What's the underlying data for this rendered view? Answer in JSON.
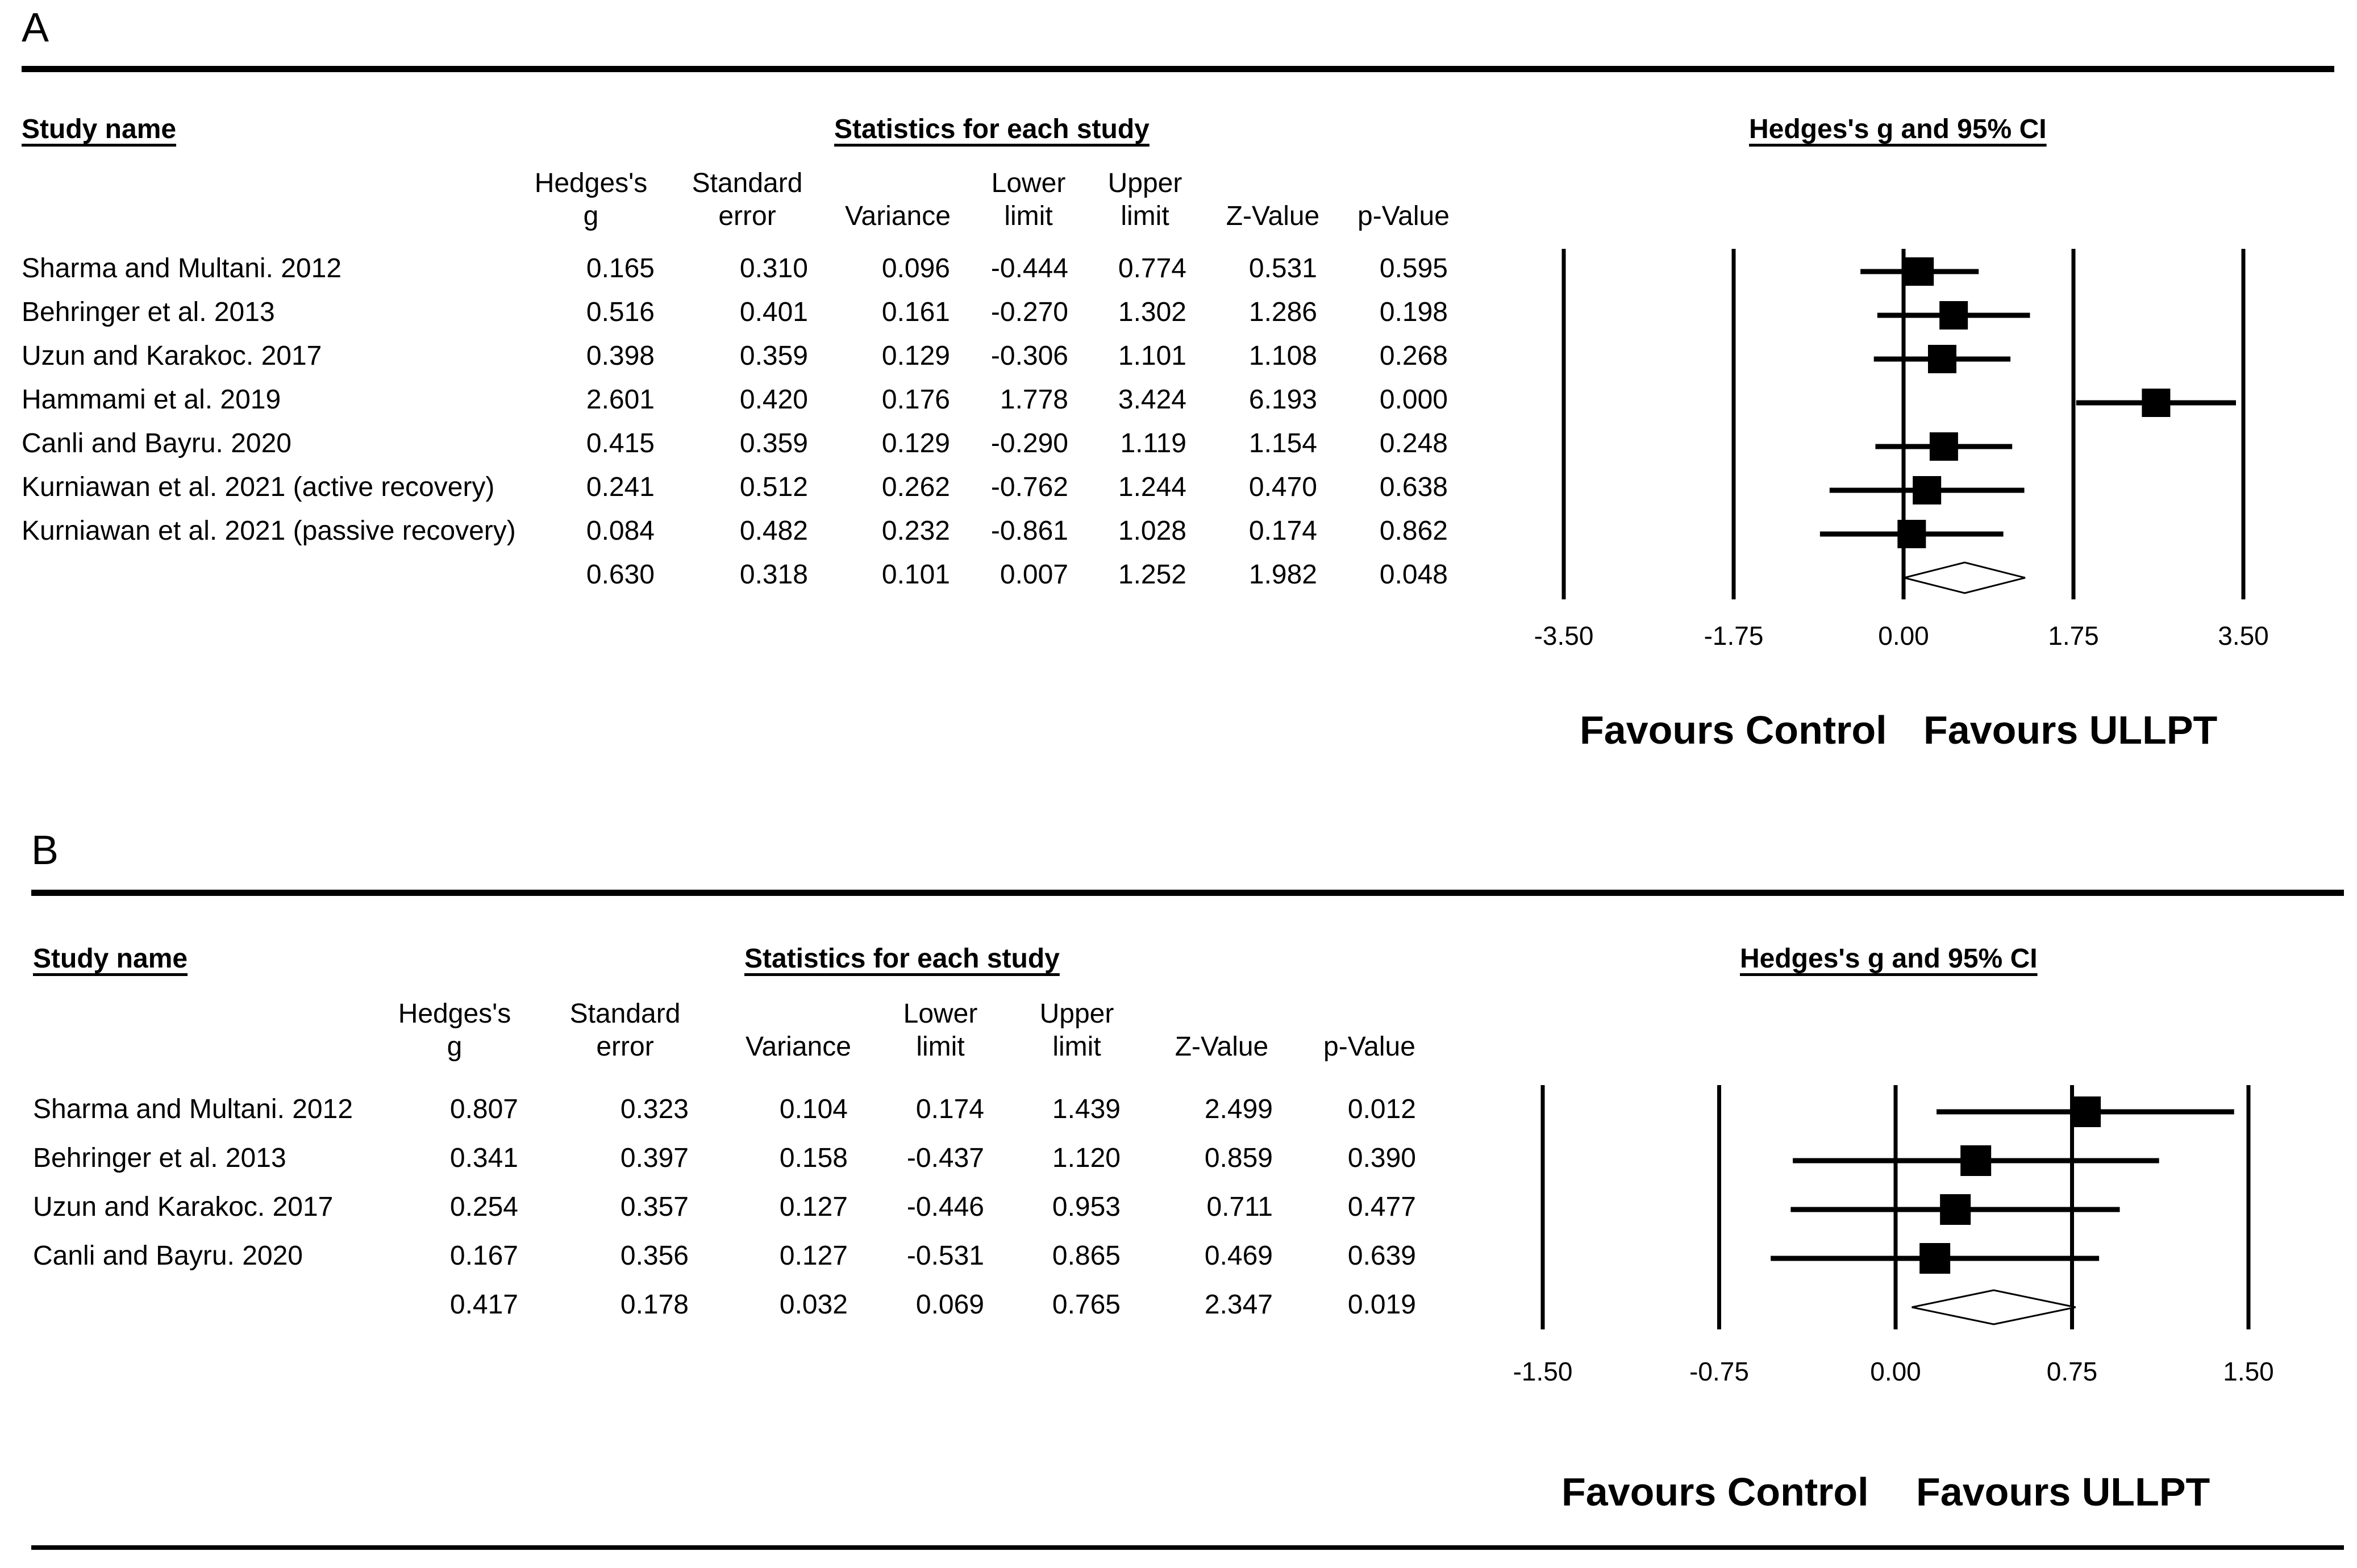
{
  "panels": [
    {
      "label": "A",
      "study_header": "Study name",
      "stats_header": "Statistics for each study",
      "plot_header": "Hedges's g and 95% CI",
      "columns": [
        "Hedges's\ng",
        "Standard\nerror",
        "Variance",
        "Lower\nlimit",
        "Upper\nlimit",
        "Z-Value",
        "p-Value"
      ],
      "rows": [
        {
          "study": "Sharma and Multani. 2012",
          "g": "0.165",
          "se": "0.310",
          "var": "0.096",
          "lower": "-0.444",
          "upper": "0.774",
          "z": "0.531",
          "p": "0.595"
        },
        {
          "study": "Behringer et al. 2013",
          "g": "0.516",
          "se": "0.401",
          "var": "0.161",
          "lower": "-0.270",
          "upper": "1.302",
          "z": "1.286",
          "p": "0.198"
        },
        {
          "study": "Uzun and Karakoc. 2017",
          "g": "0.398",
          "se": "0.359",
          "var": "0.129",
          "lower": "-0.306",
          "upper": "1.101",
          "z": "1.108",
          "p": "0.268"
        },
        {
          "study": "Hammami et al. 2019",
          "g": "2.601",
          "se": "0.420",
          "var": "0.176",
          "lower": "1.778",
          "upper": "3.424",
          "z": "6.193",
          "p": "0.000"
        },
        {
          "study": "Canli and Bayru. 2020",
          "g": "0.415",
          "se": "0.359",
          "var": "0.129",
          "lower": "-0.290",
          "upper": "1.119",
          "z": "1.154",
          "p": "0.248"
        },
        {
          "study": "Kurniawan et al. 2021 (active recovery)",
          "g": "0.241",
          "se": "0.512",
          "var": "0.262",
          "lower": "-0.762",
          "upper": "1.244",
          "z": "0.470",
          "p": "0.638"
        },
        {
          "study": "Kurniawan et al. 2021 (passive recovery)",
          "g": "0.084",
          "se": "0.482",
          "var": "0.232",
          "lower": "-0.861",
          "upper": "1.028",
          "z": "0.174",
          "p": "0.862"
        }
      ],
      "summary": {
        "g": "0.630",
        "se": "0.318",
        "var": "0.101",
        "lower": "0.007",
        "upper": "1.252",
        "z": "1.982",
        "p": "0.048"
      },
      "axis_ticks": [
        "-3.50",
        "-1.75",
        "0.00",
        "1.75",
        "3.50"
      ],
      "favours_left": "Favours Control",
      "favours_right": "Favours ULLPT"
    },
    {
      "label": "B",
      "study_header": "Study name",
      "stats_header": "Statistics for each study",
      "plot_header": "Hedges's g and 95% CI",
      "columns": [
        "Hedges's\ng",
        "Standard\nerror",
        "Variance",
        "Lower\nlimit",
        "Upper\nlimit",
        "Z-Value",
        "p-Value"
      ],
      "rows": [
        {
          "study": "Sharma and Multani. 2012",
          "g": "0.807",
          "se": "0.323",
          "var": "0.104",
          "lower": "0.174",
          "upper": "1.439",
          "z": "2.499",
          "p": "0.012"
        },
        {
          "study": "Behringer et al. 2013",
          "g": "0.341",
          "se": "0.397",
          "var": "0.158",
          "lower": "-0.437",
          "upper": "1.120",
          "z": "0.859",
          "p": "0.390"
        },
        {
          "study": "Uzun and Karakoc. 2017",
          "g": "0.254",
          "se": "0.357",
          "var": "0.127",
          "lower": "-0.446",
          "upper": "0.953",
          "z": "0.711",
          "p": "0.477"
        },
        {
          "study": "Canli and Bayru. 2020",
          "g": "0.167",
          "se": "0.356",
          "var": "0.127",
          "lower": "-0.531",
          "upper": "0.865",
          "z": "0.469",
          "p": "0.639"
        }
      ],
      "summary": {
        "g": "0.417",
        "se": "0.178",
        "var": "0.032",
        "lower": "0.069",
        "upper": "0.765",
        "z": "2.347",
        "p": "0.019"
      },
      "axis_ticks": [
        "-1.50",
        "-0.75",
        "0.00",
        "0.75",
        "1.50"
      ],
      "favours_left": "Favours Control",
      "favours_right": "Favours ULLPT"
    }
  ],
  "chart_data": [
    {
      "type": "forest",
      "panel": "A",
      "title": "Hedges's g and 95% CI",
      "xlim": [
        -3.5,
        3.5
      ],
      "ticks": [
        -3.5,
        -1.75,
        0,
        1.75,
        3.5
      ],
      "points": [
        {
          "study": "Sharma and Multani. 2012",
          "g": 0.165,
          "lower": -0.444,
          "upper": 0.774
        },
        {
          "study": "Behringer et al. 2013",
          "g": 0.516,
          "lower": -0.27,
          "upper": 1.302
        },
        {
          "study": "Uzun and Karakoc. 2017",
          "g": 0.398,
          "lower": -0.306,
          "upper": 1.101
        },
        {
          "study": "Hammami et al. 2019",
          "g": 2.601,
          "lower": 1.778,
          "upper": 3.424
        },
        {
          "study": "Canli and Bayru. 2020",
          "g": 0.415,
          "lower": -0.29,
          "upper": 1.119
        },
        {
          "study": "Kurniawan et al. 2021 (active recovery)",
          "g": 0.241,
          "lower": -0.762,
          "upper": 1.244
        },
        {
          "study": "Kurniawan et al. 2021 (passive recovery)",
          "g": 0.084,
          "lower": -0.861,
          "upper": 1.028
        }
      ],
      "pooled": {
        "g": 0.63,
        "lower": 0.007,
        "upper": 1.252
      }
    },
    {
      "type": "forest",
      "panel": "B",
      "title": "Hedges's g and 95% CI",
      "xlim": [
        -1.5,
        1.5
      ],
      "ticks": [
        -1.5,
        -0.75,
        0,
        0.75,
        1.5
      ],
      "points": [
        {
          "study": "Sharma and Multani. 2012",
          "g": 0.807,
          "lower": 0.174,
          "upper": 1.439
        },
        {
          "study": "Behringer et al. 2013",
          "g": 0.341,
          "lower": -0.437,
          "upper": 1.12
        },
        {
          "study": "Uzun and Karakoc. 2017",
          "g": 0.254,
          "lower": -0.446,
          "upper": 0.953
        },
        {
          "study": "Canli and Bayru. 2020",
          "g": 0.167,
          "lower": -0.531,
          "upper": 0.865
        }
      ],
      "pooled": {
        "g": 0.417,
        "lower": 0.069,
        "upper": 0.765
      }
    }
  ]
}
